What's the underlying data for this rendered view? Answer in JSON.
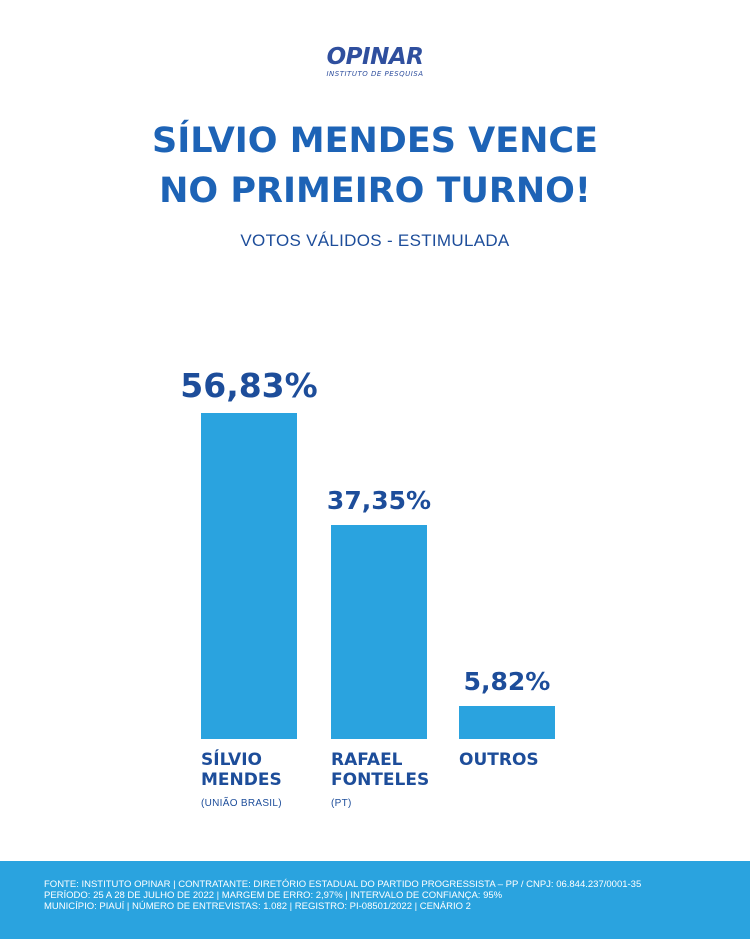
{
  "logo": {
    "word": "OPINAR",
    "sub": "INSTITUTO DE PESQUISA"
  },
  "headline": {
    "line1": "SÍLVIO MENDES VENCE",
    "line2": "NO PRIMEIRO TURNO!"
  },
  "subtitle": "VOTOS VÁLIDOS - ESTIMULADA",
  "colors": {
    "bar": "#2aa3df",
    "title": "#1d63b6",
    "text": "#1d4d9a",
    "footer_bg": "#2aa3df"
  },
  "chart_data": {
    "type": "bar",
    "title": "SÍLVIO MENDES VENCE NO PRIMEIRO TURNO!",
    "subtitle": "VOTOS VÁLIDOS - ESTIMULADA",
    "categories": [
      "SÍLVIO MENDES",
      "RAFAEL FONTELES",
      "OUTROS"
    ],
    "category_lines": [
      [
        "SÍLVIO",
        "MENDES"
      ],
      [
        "RAFAEL",
        "FONTELES"
      ],
      [
        "OUTROS"
      ]
    ],
    "parties": [
      "(UNIÃO BRASIL)",
      "(PT)",
      ""
    ],
    "values": [
      56.83,
      37.35,
      5.82
    ],
    "value_labels": [
      "56,83%",
      "37,35%",
      "5,82%"
    ],
    "ylim": [
      0,
      56.83
    ],
    "grid": false,
    "legend": "none"
  },
  "footer": {
    "lines": [
      "FONTE: INSTITUTO OPINAR | CONTRATANTE: DIRETÓRIO ESTADUAL DO PARTIDO PROGRESSISTA – PP / CNPJ: 06.844.237/0001-35",
      "PERÍODO: 25 A 28 DE JULHO DE 2022 | MARGEM DE ERRO: 2,97% | INTERVALO DE CONFIANÇA: 95%",
      "MUNICÍPIO: PIAUÍ | NÚMERO DE ENTREVISTAS: 1.082 | REGISTRO: PI-08501/2022 | CENÁRIO 2"
    ]
  }
}
